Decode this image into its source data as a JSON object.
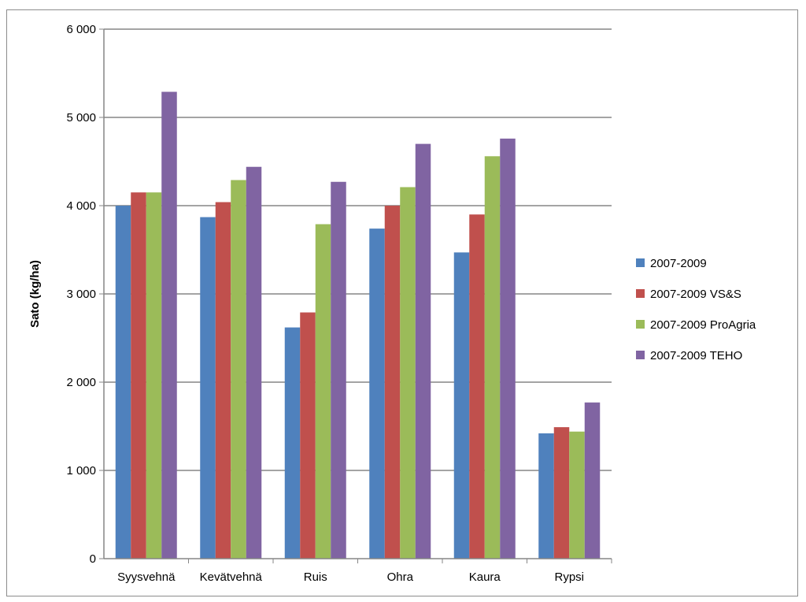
{
  "chart_data": {
    "type": "bar",
    "title": "",
    "xlabel": "",
    "ylabel": "Sato (kg/ha)",
    "ylim": [
      0,
      6000
    ],
    "yticks": [
      0,
      1000,
      2000,
      3000,
      4000,
      5000,
      6000
    ],
    "ytick_labels": [
      "0",
      "1 000",
      "2 000",
      "3 000",
      "4 000",
      "5 000",
      "6 000"
    ],
    "grid": true,
    "legend_position": "right",
    "categories": [
      "Syysvehnä",
      "Kevätvehnä",
      "Ruis",
      "Ohra",
      "Kaura",
      "Rypsi"
    ],
    "series": [
      {
        "name": "2007-2009",
        "color": "#4f81bd",
        "values": [
          4000,
          3870,
          2620,
          3740,
          3470,
          1420
        ]
      },
      {
        "name": "2007-2009 VS&S",
        "color": "#c0504d",
        "values": [
          4150,
          4040,
          2790,
          4000,
          3900,
          1490
        ]
      },
      {
        "name": "2007-2009 ProAgria",
        "color": "#9bbb59",
        "values": [
          4150,
          4290,
          3790,
          4210,
          4560,
          1440
        ]
      },
      {
        "name": "2007-2009 TEHO",
        "color": "#8064a2",
        "values": [
          5290,
          4440,
          4270,
          4700,
          4760,
          1770
        ]
      }
    ]
  }
}
